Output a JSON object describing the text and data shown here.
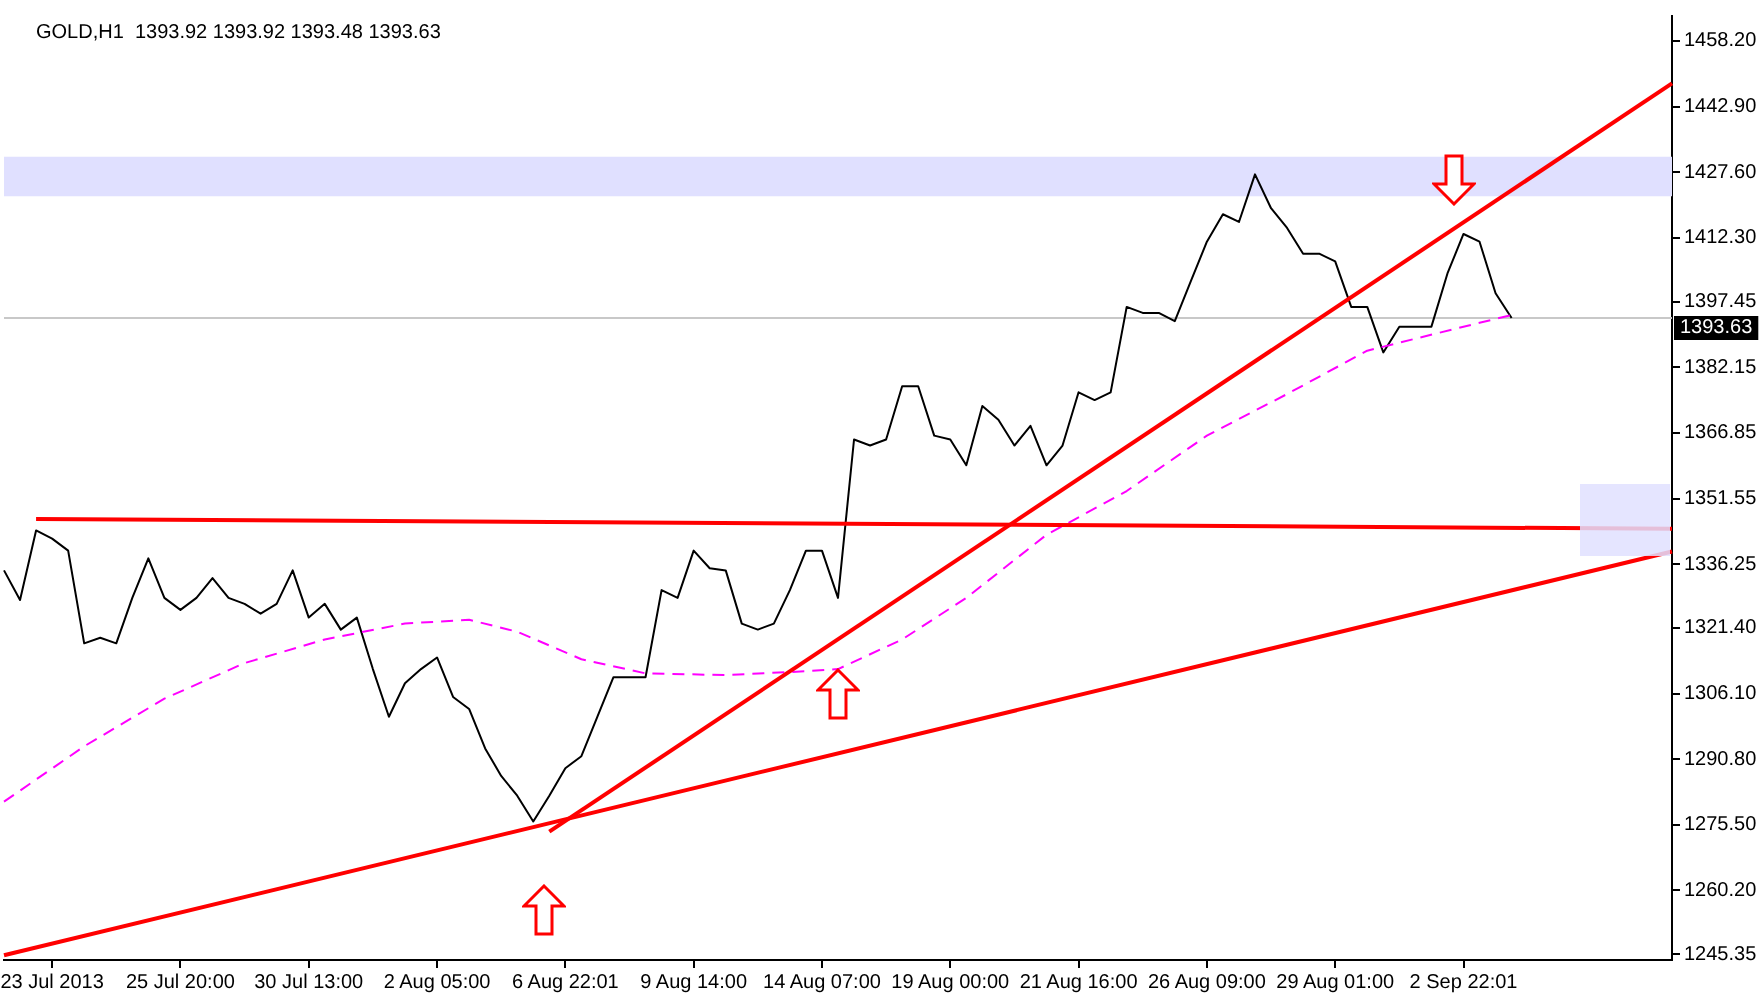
{
  "chart_data": {
    "type": "line",
    "title": "GOLD,H1  1393.92 1393.92 1393.48 1393.63",
    "categories": [
      null,
      null,
      null,
      "23 Jul 2013",
      null,
      null,
      null,
      null,
      null,
      null,
      null,
      "25 Jul 20:00",
      null,
      null,
      null,
      null,
      null,
      null,
      null,
      "30 Jul 13:00",
      null,
      null,
      null,
      null,
      null,
      null,
      null,
      "2 Aug 05:00",
      null,
      null,
      null,
      null,
      null,
      null,
      null,
      "6 Aug 22:01",
      null,
      null,
      null,
      null,
      null,
      null,
      null,
      "9 Aug 14:00",
      null,
      null,
      null,
      null,
      null,
      null,
      null,
      "14 Aug 07:00",
      null,
      null,
      null,
      null,
      null,
      null,
      null,
      "19 Aug 00:00",
      null,
      null,
      null,
      null,
      null,
      null,
      null,
      "21 Aug 16:00",
      null,
      null,
      null,
      null,
      null,
      null,
      null,
      "26 Aug 09:00",
      null,
      null,
      null,
      null,
      null,
      null,
      null,
      "29 Aug 01:00",
      null,
      null,
      null,
      null,
      null,
      null,
      null,
      "2 Sep 22:01",
      null,
      null,
      null,
      null,
      null,
      null,
      null,
      null,
      null,
      null,
      null,
      null,
      null
    ],
    "series": [
      {
        "color": "#000000",
        "values": [
          1334.8,
          1327.9,
          1344.1,
          1342.2,
          1339.4,
          1317.8,
          1319.1,
          1317.8,
          1328.4,
          1337.6,
          1328.4,
          1325.6,
          1328.4,
          1333.0,
          1328.4,
          1327.0,
          1324.7,
          1327.0,
          1334.8,
          1323.8,
          1327.0,
          1321.0,
          1323.8,
          1311.8,
          1300.7,
          1308.5,
          1311.8,
          1314.5,
          1305.3,
          1302.5,
          1293.3,
          1286.9,
          1282.3,
          1276.3,
          1282.3,
          1288.7,
          1291.5,
          1300.7,
          1309.9,
          1309.9,
          1309.9,
          1330.2,
          1328.4,
          1339.4,
          1335.3,
          1334.8,
          1322.4,
          1321.0,
          1322.4,
          1330.2,
          1339.4,
          1339.4,
          1328.4,
          1365.3,
          1363.9,
          1365.3,
          1377.7,
          1377.7,
          1366.2,
          1365.3,
          1359.3,
          1373.1,
          1369.9,
          1363.9,
          1368.5,
          1359.3,
          1363.9,
          1376.3,
          1374.5,
          1376.3,
          1396.2,
          1394.8,
          1394.8,
          1392.9,
          1402.2,
          1411.4,
          1417.8,
          1416.0,
          1427.1,
          1419.2,
          1414.6,
          1408.6,
          1408.6,
          1406.8,
          1396.2,
          1396.2,
          1385.6,
          1391.6,
          1391.6,
          1391.6,
          1404.0,
          1413.2,
          1411.4,
          1399.4,
          1393.63,
          null,
          null,
          null,
          null,
          null,
          null,
          null,
          null,
          null,
          null
        ]
      },
      {
        "color": "#ff00ff",
        "line_style": "dashed",
        "values": [
          1280.9,
          null,
          null,
          null,
          null,
          1293.8,
          null,
          null,
          null,
          null,
          1304.9,
          null,
          null,
          null,
          null,
          1313.2,
          null,
          null,
          null,
          null,
          1318.7,
          null,
          null,
          null,
          null,
          1322.4,
          null,
          null,
          null,
          1323.3,
          null,
          null,
          1320.5,
          null,
          null,
          null,
          1314.1,
          null,
          null,
          null,
          1310.8,
          null,
          null,
          null,
          null,
          1310.4,
          null,
          null,
          null,
          null,
          1311.3,
          null,
          1311.8,
          null,
          null,
          null,
          1318.7,
          null,
          null,
          null,
          1328.4,
          null,
          null,
          null,
          null,
          1343.1,
          null,
          null,
          null,
          null,
          1353.3,
          null,
          null,
          null,
          null,
          1366.2,
          null,
          null,
          null,
          null,
          1375.9,
          null,
          null,
          null,
          null,
          1386.0,
          null,
          null,
          1388.8,
          null,
          null,
          null,
          1392.5,
          null,
          1394.3,
          null,
          null,
          null,
          null,
          null,
          null,
          null,
          null,
          null,
          null
        ]
      },
      {
        "color": "#ff0000",
        "values": [
          null,
          null,
          null,
          null,
          null,
          null,
          null,
          null,
          null,
          null,
          null,
          null,
          null,
          null,
          null,
          null,
          null,
          null,
          null,
          null,
          null,
          null,
          null,
          null,
          null,
          null,
          null,
          null,
          null,
          null,
          null,
          null,
          null,
          null,
          1273.9,
          null,
          null,
          null,
          null,
          null,
          null,
          null,
          null,
          null,
          null,
          null,
          null,
          null,
          null,
          null,
          null,
          null,
          null,
          null,
          null,
          null,
          null,
          null,
          null,
          null,
          null,
          null,
          null,
          null,
          null,
          null,
          null,
          null,
          null,
          null,
          null,
          null,
          null,
          null,
          null,
          null,
          null,
          null,
          null,
          null,
          null,
          null,
          null,
          null,
          null,
          null,
          null,
          null,
          null,
          null,
          null,
          null,
          null,
          null,
          null,
          null,
          null,
          null,
          null,
          null,
          null,
          null,
          null,
          null,
          1448.3
        ]
      },
      {
        "color": "#ff0000",
        "values": [
          1245.1,
          null,
          null,
          null,
          null,
          null,
          null,
          null,
          null,
          null,
          null,
          null,
          null,
          null,
          null,
          null,
          null,
          null,
          null,
          null,
          null,
          null,
          null,
          null,
          null,
          null,
          null,
          null,
          null,
          null,
          null,
          null,
          null,
          null,
          null,
          null,
          null,
          null,
          null,
          null,
          null,
          null,
          null,
          null,
          null,
          null,
          null,
          null,
          null,
          null,
          null,
          null,
          null,
          null,
          null,
          null,
          null,
          null,
          null,
          null,
          null,
          null,
          null,
          null,
          null,
          null,
          null,
          null,
          null,
          null,
          null,
          null,
          null,
          null,
          null,
          null,
          null,
          null,
          null,
          null,
          null,
          null,
          null,
          null,
          null,
          null,
          null,
          null,
          null,
          null,
          null,
          null,
          null,
          null,
          null,
          null,
          null,
          null,
          null,
          null,
          null,
          null,
          null,
          null,
          1339.2
        ]
      },
      {
        "color": "#ff0000",
        "values": [
          null,
          null,
          1346.8,
          null,
          null,
          null,
          null,
          null,
          null,
          null,
          null,
          null,
          null,
          null,
          null,
          null,
          null,
          null,
          null,
          null,
          null,
          null,
          null,
          null,
          null,
          null,
          null,
          null,
          null,
          null,
          null,
          null,
          null,
          null,
          null,
          null,
          null,
          null,
          null,
          null,
          null,
          null,
          null,
          null,
          null,
          null,
          null,
          null,
          null,
          null,
          null,
          null,
          null,
          null,
          null,
          null,
          null,
          null,
          null,
          null,
          null,
          null,
          null,
          null,
          null,
          null,
          null,
          null,
          null,
          null,
          null,
          null,
          null,
          null,
          null,
          null,
          null,
          null,
          null,
          null,
          null,
          null,
          null,
          null,
          null,
          null,
          null,
          null,
          null,
          null,
          null,
          null,
          null,
          null,
          null,
          null,
          null,
          null,
          null,
          null,
          null,
          null,
          null,
          null,
          1344.5
        ]
      }
    ],
    "ylim": [
      1244,
      1464
    ],
    "yticks": [
      {
        "value": 1458.2,
        "label": "1458.20"
      },
      {
        "value": 1442.9,
        "label": "1442.90"
      },
      {
        "value": 1427.6,
        "label": "1427.60"
      },
      {
        "value": 1412.3,
        "label": "1412.30"
      },
      1397.45,
      1382.15,
      1366.85,
      1351.55,
      1336.25,
      {
        "value": 1321.4,
        "label": "1321.40"
      },
      {
        "value": 1306.1,
        "label": "1306.10"
      },
      {
        "value": 1290.8,
        "label": "1290.80"
      },
      {
        "value": 1275.5,
        "label": "1275.50"
      },
      {
        "value": 1260.2,
        "label": "1260.20"
      },
      1245.35
    ],
    "ref_lines": [
      {
        "axis": "y",
        "value": 1393.63,
        "label": "1393.63",
        "color": "#c8c8c8"
      }
    ],
    "bands": [
      {
        "axis": "y",
        "from": 1422.0,
        "to": 1431.2,
        "color": "#e0e0ff"
      }
    ]
  }
}
